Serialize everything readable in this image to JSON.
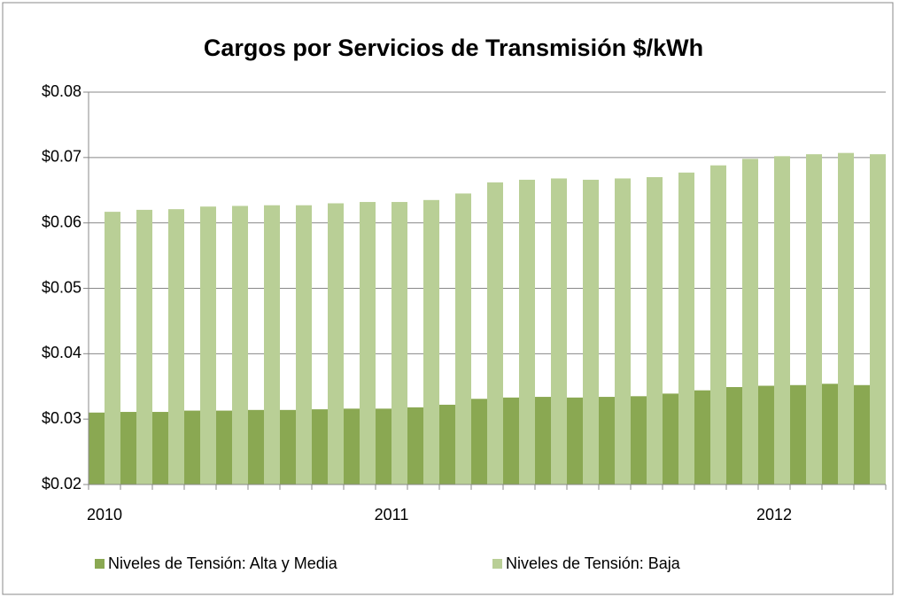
{
  "chart_data": {
    "type": "bar",
    "title": "Cargos por Servicios de Transmisión $/kWh",
    "categories": [
      "2010",
      null,
      null,
      null,
      null,
      null,
      null,
      null,
      null,
      "2011",
      null,
      null,
      null,
      null,
      null,
      null,
      null,
      null,
      null,
      null,
      null,
      "2012",
      null,
      null,
      null
    ],
    "series": [
      {
        "name": "Niveles de Tensión: Alta y Media",
        "color": "#8aa852",
        "values": [
          0.031,
          0.0311,
          0.0311,
          0.0313,
          0.0313,
          0.0314,
          0.0314,
          0.0315,
          0.0316,
          0.0316,
          0.0318,
          0.0322,
          0.0331,
          0.0333,
          0.0334,
          0.0333,
          0.0334,
          0.0335,
          0.0339,
          0.0344,
          0.0349,
          0.0351,
          0.0352,
          0.0354,
          0.0352
        ]
      },
      {
        "name": "Niveles de Tensión: Baja",
        "color": "#b9cf96",
        "values": [
          0.0617,
          0.062,
          0.0621,
          0.0625,
          0.0626,
          0.0627,
          0.0627,
          0.063,
          0.0632,
          0.0632,
          0.0635,
          0.0645,
          0.0662,
          0.0666,
          0.0668,
          0.0666,
          0.0668,
          0.067,
          0.0677,
          0.0688,
          0.0698,
          0.0702,
          0.0705,
          0.0707,
          0.0705
        ]
      }
    ],
    "ylim": [
      0.02,
      0.08
    ],
    "yticks": [
      {
        "value": 0.02,
        "label": "$0.02"
      },
      {
        "value": 0.03,
        "label": "$0.03"
      },
      {
        "value": 0.04,
        "label": "$0.04"
      },
      {
        "value": 0.05,
        "label": "$0.05"
      },
      {
        "value": 0.06,
        "label": "$0.06"
      },
      {
        "value": 0.07,
        "label": "$0.07"
      },
      {
        "value": 0.08,
        "label": "$0.08"
      }
    ],
    "grid": true,
    "legend": "bottom"
  }
}
